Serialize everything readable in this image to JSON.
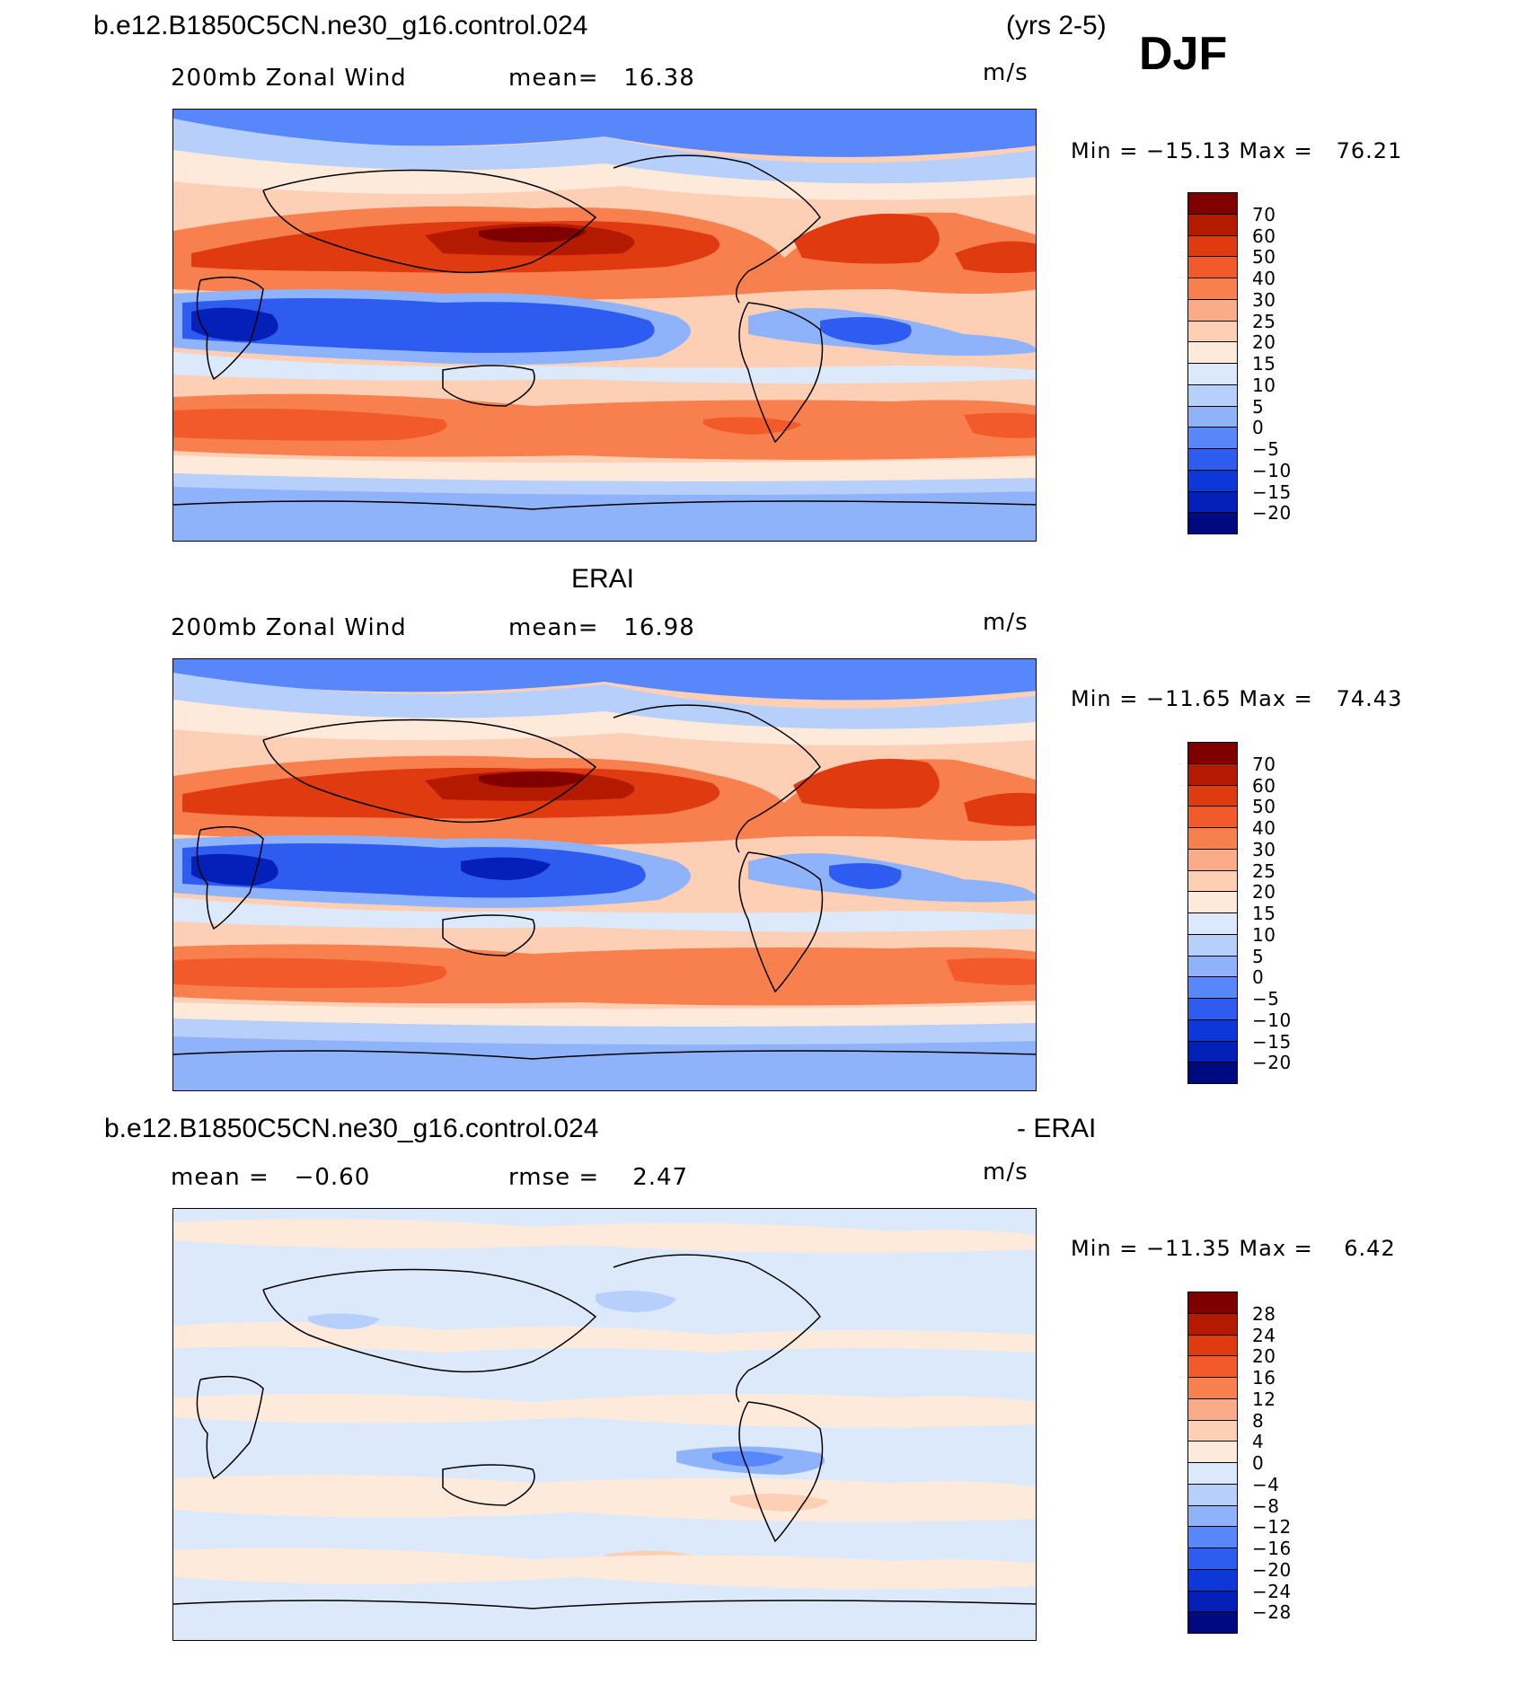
{
  "header": {
    "case_name": "b.e12.B1850C5CN.ne30_g16.control.024",
    "years": "(yrs 2-5)",
    "season": "DJF",
    "obs_title": "ERAI",
    "diff_case_name": "b.e12.B1850C5CN.ne30_g16.control.024",
    "diff_suffix": "- ERAI"
  },
  "panels": [
    {
      "variable": "200mb Zonal Wind",
      "stat1": "mean=   16.38",
      "units": "m/s",
      "minmax": "Min = −15.13 Max =   76.21",
      "colorbar_labels": [
        "70",
        "60",
        "50",
        "40",
        "30",
        "25",
        "20",
        "15",
        "10",
        "5",
        "0",
        "−5",
        "−10",
        "−15",
        "−20"
      ],
      "kind": "model"
    },
    {
      "variable": "200mb Zonal Wind",
      "stat1": "mean=   16.98",
      "units": "m/s",
      "minmax": "Min = −11.65 Max =   74.43",
      "colorbar_labels": [
        "70",
        "60",
        "50",
        "40",
        "30",
        "25",
        "20",
        "15",
        "10",
        "5",
        "0",
        "−5",
        "−10",
        "−15",
        "−20"
      ],
      "kind": "obs"
    },
    {
      "variable": "mean =   −0.60",
      "stat1": "rmse =    2.47",
      "units": "m/s",
      "minmax": "Min = −11.35 Max =    6.42",
      "colorbar_labels": [
        "28",
        "24",
        "20",
        "16",
        "12",
        "8",
        "4",
        "0",
        "−4",
        "−8",
        "−12",
        "−16",
        "−20",
        "−24",
        "−28"
      ],
      "kind": "diff"
    }
  ],
  "colorbar_colors": [
    "#800000",
    "#b31a00",
    "#e03a10",
    "#f25a2a",
    "#f8804f",
    "#fbab88",
    "#fdd0b6",
    "#feeadb",
    "#dbe9fa",
    "#b7d0fb",
    "#8fb3fb",
    "#5787fa",
    "#2e5cf0",
    "#0d37d9",
    "#0520b8",
    "#000a80"
  ]
}
